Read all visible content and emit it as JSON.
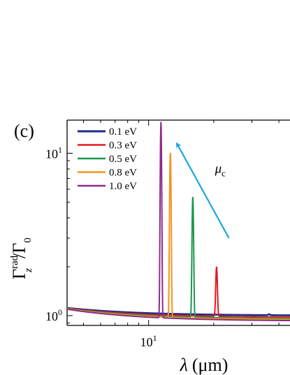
{
  "chart_data": {
    "type": "line",
    "panel_label": "(c)",
    "xlabel_symbol": "λ",
    "xlabel_unit": "(μm)",
    "ylabel_main": "Γ",
    "ylabel_sub": "z",
    "ylabel_sup": "rad",
    "ylabel_den": "Γ",
    "ylabel_den_sub": "0",
    "x_scale": "log",
    "y_scale": "log",
    "xlim": [
      4.2,
      45
    ],
    "ylim": [
      0.87,
      16
    ],
    "x_ticks": [
      {
        "value": 10,
        "base": "10",
        "exp": "1"
      }
    ],
    "y_ticks": [
      {
        "value": 1,
        "base": "10",
        "exp": "0"
      },
      {
        "value": 10,
        "base": "10",
        "exp": "1"
      }
    ],
    "legend_position": "top-left",
    "annotation": {
      "label": "μ",
      "label_sub": "c",
      "color": "#1aa6dc",
      "arrow_from": {
        "x": 23.5,
        "y": 3.0
      },
      "arrow_to": {
        "x": 13.5,
        "y": 11.5
      }
    },
    "series": [
      {
        "name": "0.1 eV",
        "color": "#1f2a8c",
        "base": 1.115,
        "floor": 1.0,
        "peak_x": 36.0,
        "peak_y": 1.02,
        "width": 0.004
      },
      {
        "name": "0.3 eV",
        "color": "#e3191f",
        "base": 1.11,
        "floor": 0.975,
        "peak_x": 20.6,
        "peak_y": 2.0,
        "width": 0.0035
      },
      {
        "name": "0.5 eV",
        "color": "#1a9a4a",
        "base": 1.105,
        "floor": 0.955,
        "peak_x": 16.0,
        "peak_y": 5.4,
        "width": 0.003
      },
      {
        "name": "0.8 eV",
        "color": "#f7931e",
        "base": 1.1,
        "floor": 0.94,
        "peak_x": 12.6,
        "peak_y": 10.0,
        "width": 0.0028
      },
      {
        "name": "1.0 eV",
        "color": "#8e2a8e",
        "base": 1.095,
        "floor": 0.925,
        "peak_x": 11.4,
        "peak_y": 15.5,
        "width": 0.0026
      }
    ]
  }
}
